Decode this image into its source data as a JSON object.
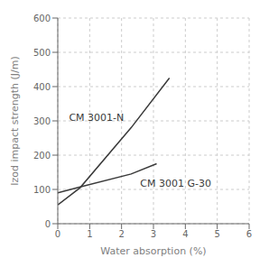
{
  "chart_data": {
    "type": "line",
    "xlabel": "Water absorption (%)",
    "ylabel": "Izod impact strength (J/m)",
    "series": [
      {
        "name": "CM 3001-N",
        "color": "#3a3a3a",
        "x": [
          0,
          0.7,
          2.3,
          3.5
        ],
        "values": [
          55,
          105,
          280,
          425
        ]
      },
      {
        "name": "CM 3001 G-30",
        "color": "#3a3a3a",
        "x": [
          0,
          0.7,
          2.3,
          3.1
        ],
        "values": [
          90,
          107,
          145,
          175
        ]
      }
    ],
    "xlim": [
      0,
      6
    ],
    "ylim": [
      0,
      600
    ],
    "xticks": [
      0,
      1,
      2,
      3,
      4,
      5,
      6
    ],
    "yticks": [
      0,
      100,
      200,
      300,
      400,
      500,
      600
    ],
    "grid": true
  }
}
